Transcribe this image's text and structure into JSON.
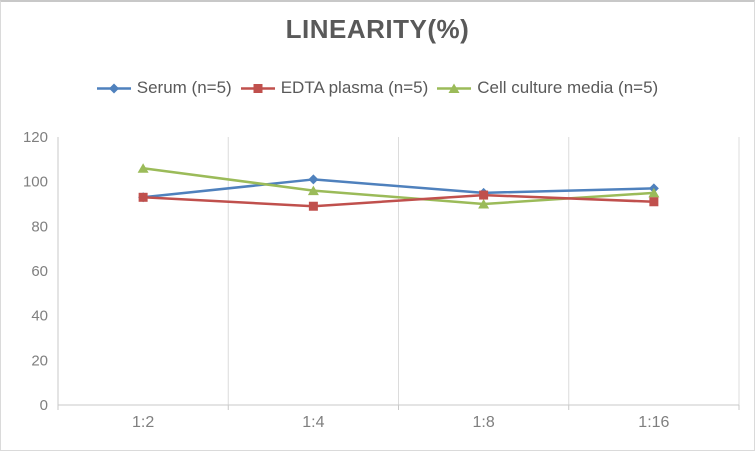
{
  "chart_data": {
    "type": "line",
    "title": "LINEARITY(%)",
    "categories": [
      "1:2",
      "1:4",
      "1:8",
      "1:16"
    ],
    "series": [
      {
        "name": "Serum (n=5)",
        "marker": "diamond",
        "color": "#4F81BD",
        "values": [
          93,
          101,
          95,
          97
        ]
      },
      {
        "name": "EDTA plasma (n=5)",
        "marker": "square",
        "color": "#C0504D",
        "values": [
          93,
          89,
          94,
          91
        ]
      },
      {
        "name": "Cell culture media (n=5)",
        "marker": "triangle",
        "color": "#9BBB59",
        "values": [
          106,
          96,
          90,
          95
        ]
      }
    ],
    "xlabel": "",
    "ylabel": "",
    "ylim": [
      0,
      120
    ],
    "yticks": [
      0,
      20,
      40,
      60,
      80,
      100,
      120
    ],
    "grid": "vertical-only",
    "legend_position": "top",
    "draw_order": [
      0,
      2,
      1
    ],
    "style": {
      "grid_color": "#DCDCDC",
      "axis_color": "#C9C9C9",
      "title_color": "#595959",
      "legend_text_color": "#595959",
      "axis_text_color": "#7F7F7F"
    }
  }
}
